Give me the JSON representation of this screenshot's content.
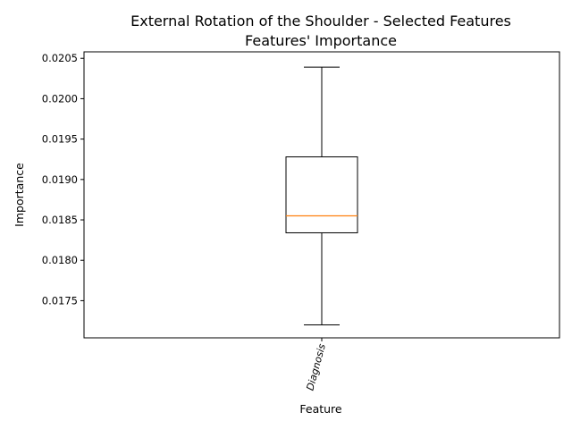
{
  "chart_data": {
    "type": "box",
    "title_lines": [
      "External Rotation of the Shoulder - Selected Features",
      "Features' Importance"
    ],
    "xlabel": "Feature",
    "ylabel": "Importance",
    "ylim": [
      0.01704,
      0.02058
    ],
    "yticks": [
      0.0175,
      0.018,
      0.0185,
      0.019,
      0.0195,
      0.02,
      0.0205
    ],
    "ytick_labels": [
      "0.0175",
      "0.0180",
      "0.0185",
      "0.0190",
      "0.0195",
      "0.0200",
      "0.0205"
    ],
    "categories": [
      "Diagnosis"
    ],
    "boxes": [
      {
        "category": "Diagnosis",
        "whisker_low": 0.0172,
        "q1": 0.01834,
        "median": 0.01855,
        "q3": 0.01928,
        "whisker_high": 0.02039
      }
    ],
    "colors": {
      "box": "#000000",
      "median": "#ff7f0e"
    },
    "grid": false
  }
}
